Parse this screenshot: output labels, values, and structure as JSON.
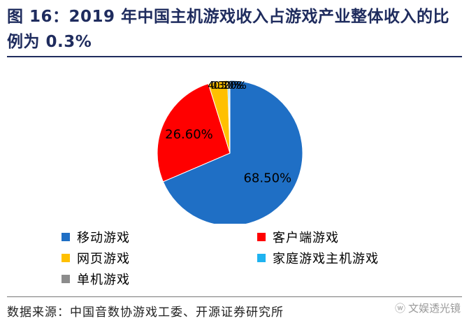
{
  "title": "图 16：2019 年中国主机游戏收入占游戏产业整体收入的比例为 0.3%",
  "source": "数据来源：中国音数协游戏工委、开源证券研究所",
  "watermark": "文娱透光镜",
  "chart_data": {
    "type": "pie",
    "start_angle_deg": 0,
    "direction": "clockwise",
    "slices": [
      {
        "label": "移动游戏",
        "value": 68.5,
        "display": "68.50%",
        "color": "#1f6fc5"
      },
      {
        "label": "客户端游戏",
        "value": 26.6,
        "display": "26.60%",
        "color": "#ff0000"
      },
      {
        "label": "网页游戏",
        "value": 4.3,
        "display": "4.30%",
        "color": "#ffc000"
      },
      {
        "label": "家庭游戏主机游戏",
        "value": 0.3,
        "display": "0.30%",
        "color": "#1fb3f0"
      },
      {
        "label": "单机游戏",
        "value": 0.2,
        "display": "0.20%",
        "color": "#8c8c8c"
      }
    ],
    "legend_position": "bottom",
    "legend_columns": 2
  }
}
